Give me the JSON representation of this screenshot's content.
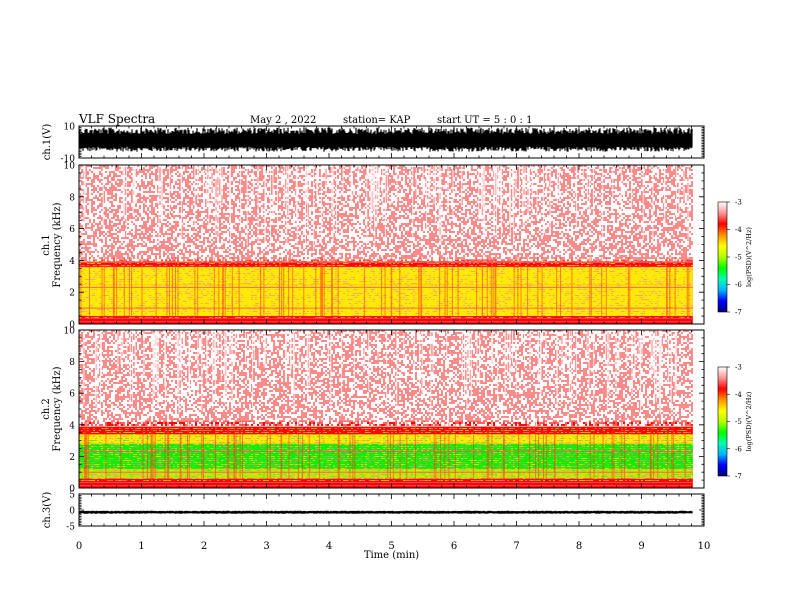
{
  "header": {
    "title": "VLF Spectra",
    "date": "May 2 , 2022",
    "station": "station= KAP",
    "start_ut": "start UT = 5 : 0 : 1"
  },
  "chart_data": [
    {
      "type": "line",
      "name": "ch1_waveform",
      "ylabel": "ch.1(V)",
      "ylim": [
        -10,
        10
      ],
      "yticks": [
        "10",
        "-10"
      ],
      "xlim": [
        0,
        10
      ],
      "note_ref": "dense oscillating waveform filling roughly -6 to 9 V",
      "envelope": {
        "min": -6,
        "max": 9
      }
    },
    {
      "type": "heatmap",
      "name": "ch1_spectrogram",
      "ylabel": "ch.1 Frequency (kHz)",
      "xlim": [
        0,
        10
      ],
      "ylim": [
        0,
        10
      ],
      "yticks": [
        "0",
        "2",
        "4",
        "6",
        "8",
        "10"
      ],
      "data_end_min": 9.82,
      "bands_khz": [
        {
          "from": 0,
          "to": 0.5,
          "level": -3.9
        },
        {
          "from": 0.5,
          "to": 1.0,
          "level": -4.4
        },
        {
          "from": 1.0,
          "to": 2.5,
          "level": -4.8
        },
        {
          "from": 2.5,
          "to": 3.6,
          "level": -4.5
        },
        {
          "from": 3.6,
          "to": 4.0,
          "level": -3.7
        },
        {
          "from": 4.0,
          "to": 10,
          "level": -3.3
        }
      ],
      "colorbar": {
        "label": "log(PSD)(V^2/Hz)",
        "ticks": [
          "-3",
          "-4",
          "-5",
          "-6",
          "-7"
        ],
        "range": [
          -7,
          -3
        ],
        "colors": [
          "#000070",
          "#0000ff",
          "#00b4ff",
          "#00ffb0",
          "#00ff00",
          "#b4ff00",
          "#ffff00",
          "#ff9000",
          "#ff0000",
          "#ff9696",
          "#ffffff"
        ]
      }
    },
    {
      "type": "heatmap",
      "name": "ch2_spectrogram",
      "ylabel": "ch.2 Frequency (kHz)",
      "xlim": [
        0,
        10
      ],
      "ylim": [
        0,
        10
      ],
      "yticks": [
        "0",
        "2",
        "4",
        "6",
        "8",
        "10"
      ],
      "data_end_min": 9.82,
      "bands_khz": [
        {
          "from": 0,
          "to": 0.6,
          "level": -4.0
        },
        {
          "from": 0.6,
          "to": 1.2,
          "level": -4.9
        },
        {
          "from": 1.2,
          "to": 2.8,
          "level": -5.3
        },
        {
          "from": 2.8,
          "to": 3.4,
          "level": -4.6
        },
        {
          "from": 3.4,
          "to": 4.2,
          "level": -3.8
        },
        {
          "from": 4.2,
          "to": 10,
          "level": -3.4
        }
      ],
      "colorbar": {
        "label": "log(PSD)(V^2/Hz)",
        "ticks": [
          "-3",
          "-4",
          "-5",
          "-6",
          "-7"
        ],
        "range": [
          -7,
          -3
        ]
      }
    },
    {
      "type": "line",
      "name": "ch3_waveform",
      "ylabel": "ch.3(V)",
      "ylim": [
        -5,
        5
      ],
      "yticks": [
        "5",
        "0",
        "-5"
      ],
      "xlim": [
        0,
        10
      ],
      "envelope": {
        "min": -1.2,
        "max": -0.2
      },
      "xticks": [
        "0",
        "1",
        "2",
        "3",
        "4",
        "5",
        "6",
        "7",
        "8",
        "9",
        "10"
      ],
      "xlabel": "Time (min)"
    }
  ]
}
